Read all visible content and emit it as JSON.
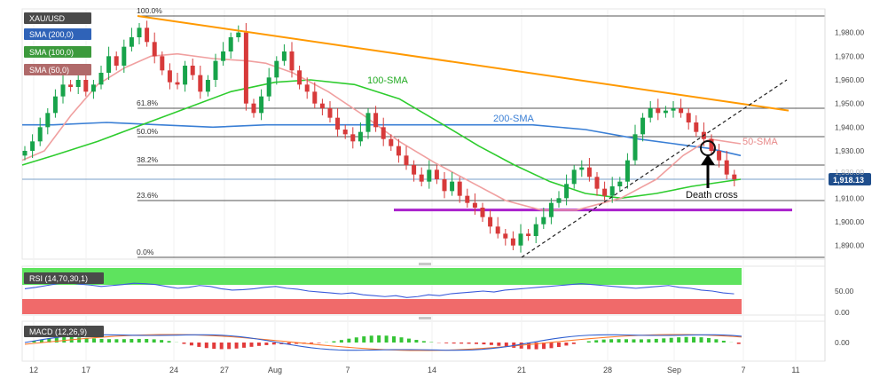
{
  "symbol": "XAU/USD",
  "legend": [
    {
      "label": "SMA (200,0)",
      "color": "#2f6fd0"
    },
    {
      "label": "SMA (100,0)",
      "color": "#2db82d"
    },
    {
      "label": "SMA (50,0)",
      "color": "#e58c8c"
    }
  ],
  "last_price": "1,918.13",
  "colors": {
    "candle_up": "#17a34a",
    "candle_down": "#d73a3a",
    "sma200": "#3a7fd5",
    "sma100": "#2ecc2e",
    "sma50": "#f0a0a0",
    "resistance": "#ff9900",
    "support": "#aa22cc",
    "rsi_upper": "#5ee35e",
    "rsi_lower": "#f06a6a",
    "rsi_line": "#3b5bdb",
    "macd_line": "#2f5fd0",
    "signal_line": "#ff7a2a"
  },
  "annotations": {
    "sma100": "100-SMA",
    "sma200": "200-SMA",
    "sma50": "50-SMA",
    "death_cross": "Death cross"
  },
  "chart_data": [
    {
      "type": "line",
      "title": "XAU/USD",
      "price_ticks": [
        "1,980.00",
        "1,970.00",
        "1,960.00",
        "1,950.00",
        "1,940.00",
        "1,930.00",
        "1,910.00",
        "1,900.00",
        "1,890.00"
      ],
      "x_labels": [
        "12",
        "17",
        "24",
        "27",
        "Aug",
        "7",
        "14",
        "21",
        "28",
        "Sep",
        "7",
        "11"
      ],
      "fib_levels": [
        {
          "label": "100.0%",
          "price": 1987
        },
        {
          "label": "61.8%",
          "price": 1948
        },
        {
          "label": "50.0%",
          "price": 1936
        },
        {
          "label": "38.2%",
          "price": 1924
        },
        {
          "label": "23.6%",
          "price": 1909
        },
        {
          "label": "0.0%",
          "price": 1885
        }
      ],
      "support_level": 1905,
      "ohlc_close": [
        1930,
        1934,
        1940,
        1946,
        1953,
        1958,
        1957,
        1960,
        1955,
        1958,
        1963,
        1970,
        1966,
        1974,
        1978,
        1982,
        1976,
        1970,
        1964,
        1959,
        1958,
        1966,
        1962,
        1955,
        1960,
        1968,
        1972,
        1978,
        1980,
        1950,
        1946,
        1953,
        1961,
        1968,
        1972,
        1964,
        1958,
        1955,
        1950,
        1948,
        1944,
        1939,
        1937,
        1934,
        1938,
        1946,
        1940,
        1935,
        1932,
        1928,
        1924,
        1920,
        1917,
        1922,
        1918,
        1913,
        1917,
        1911,
        1908,
        1906,
        1902,
        1898,
        1895,
        1893,
        1890,
        1895,
        1894,
        1899,
        1902,
        1908,
        1910,
        1916,
        1922,
        1923,
        1919,
        1914,
        1911,
        1915,
        1917,
        1926,
        1937,
        1944,
        1948,
        1946,
        1947,
        1948,
        1946,
        1942,
        1938,
        1935,
        1930,
        1926,
        1920,
        1918
      ]
    },
    {
      "type": "line",
      "title": "RSI (14,70,30,1)",
      "y_ticks": [
        "50.00",
        "0.00"
      ],
      "upper": 70,
      "lower": 30
    },
    {
      "type": "bar",
      "title": "MACD (12,26,9)",
      "y_ticks": [
        "0.00"
      ]
    }
  ]
}
